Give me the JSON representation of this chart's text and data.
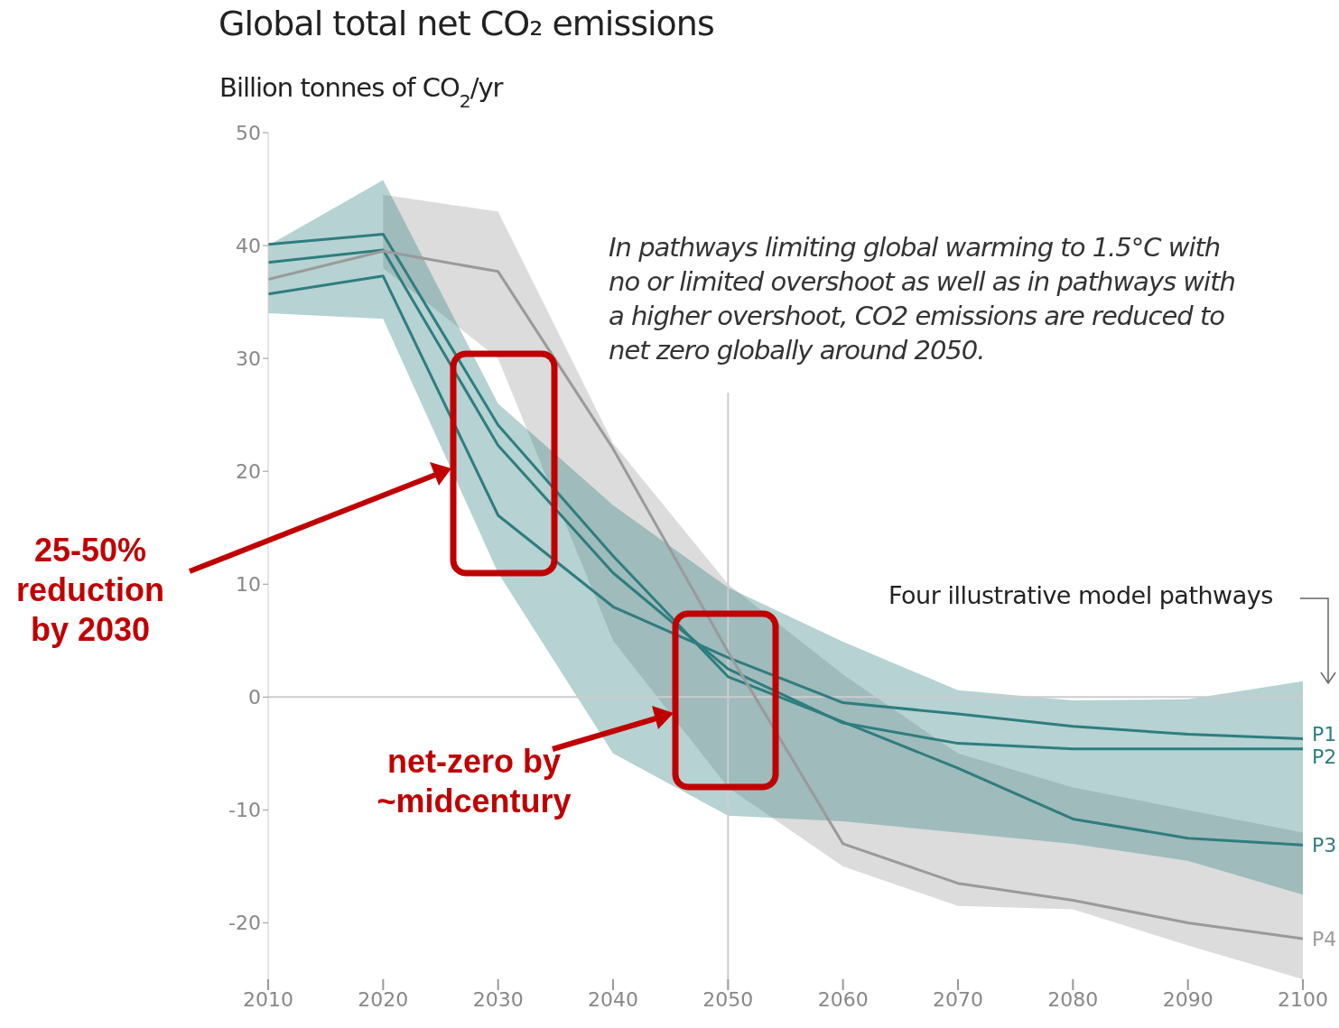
{
  "chart_data": {
    "type": "line",
    "title": "Global total net CO₂ emissions",
    "ylabel": "Billion tonnes of CO$_{2}$/yr",
    "x": [
      2010,
      2020,
      2030,
      2040,
      2050,
      2060,
      2070,
      2080,
      2090,
      2100
    ],
    "series": [
      {
        "name": "P1",
        "color": "#2e7d80",
        "values": [
          35.7,
          37.3,
          16.1,
          8,
          3.5,
          -0.5,
          -1.5,
          -2.6,
          -3.3,
          -3.7
        ],
        "lower": [
          34,
          33.5,
          11,
          -5,
          -10.5,
          -11,
          -12,
          -13,
          -14.5,
          -17.5
        ],
        "upper": [
          40,
          45.8,
          26,
          17,
          9.7,
          4.9,
          0.6,
          -0.3,
          -0.2,
          1.4
        ]
      },
      {
        "name": "P2",
        "color": "#2e7d80",
        "values": [
          38.5,
          39.6,
          22.3,
          11,
          2.5,
          -2.3,
          -4.1,
          -4.6,
          -4.6,
          -4.6
        ]
      },
      {
        "name": "P3",
        "color": "#2e7d80",
        "values": [
          40.1,
          41,
          24.1,
          12.5,
          1.8,
          -2.2,
          -6.3,
          -10.8,
          -12.5,
          -13.1
        ]
      },
      {
        "name": "P4",
        "color": "#9a9a9a",
        "values": [
          37,
          39.5,
          37.7,
          22,
          4,
          -13,
          -16.5,
          -18,
          -20,
          -21.4
        ],
        "lower": [
          null,
          38,
          30,
          5,
          -8,
          -15,
          -18.5,
          -18.8,
          -22,
          -25
        ],
        "upper": [
          null,
          44.5,
          43,
          22.5,
          10,
          2,
          -5,
          -8,
          -10,
          -12
        ]
      }
    ],
    "xlim": [
      2010,
      2100
    ],
    "xticks": [
      2010,
      2020,
      2030,
      2040,
      2050,
      2060,
      2070,
      2080,
      2090,
      2100
    ],
    "ylim": [
      -25,
      50
    ],
    "yticks": [
      -20,
      -10,
      0,
      10,
      20,
      30,
      40,
      50
    ],
    "ref_lines": [
      {
        "axis": "y",
        "value": 0,
        "color": "#cccccc"
      },
      {
        "axis": "x",
        "value": 2050,
        "color": "#cccccc"
      }
    ],
    "annotations": [
      "In pathways limiting global warming to 1.5°C with no or limited overshoot as well as in pathways with a higher overshoot, CO2 emissions are reduced to net zero globally around 2050.",
      "Four illustrative model pathways",
      "25-50% reduction by 2030",
      "net-zero by ~midcentury"
    ],
    "marker": "none",
    "line_style": "solid"
  }
}
